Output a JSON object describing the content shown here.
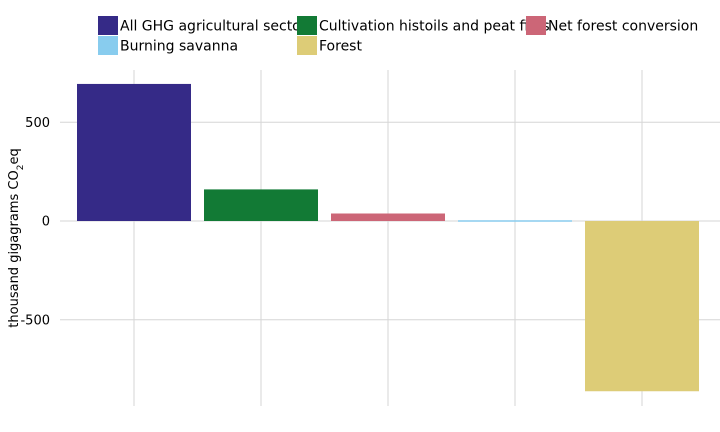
{
  "chart_data": {
    "type": "bar",
    "title": "",
    "xlabel": "",
    "ylabel": "thousand gigagrams CO",
    "ylabel_subscript": "2",
    "ylabel_suffix": "eq",
    "ylim": [
      -900,
      780
    ],
    "yticks": [
      -500,
      0,
      500
    ],
    "ytick_labels": [
      "-500",
      "0",
      "500"
    ],
    "grid": true,
    "legend_position": "top",
    "categories": [
      "All GHG agricultural sectors",
      "Cultivation histoils and peat fires",
      "Net forest conversion",
      "Burning savanna",
      "Forest"
    ],
    "values": [
      694,
      160,
      38,
      -3,
      -862
    ],
    "colors": [
      "#352a87",
      "#127a35",
      "#cc6677",
      "#88ccee",
      "#ddcc77"
    ]
  }
}
